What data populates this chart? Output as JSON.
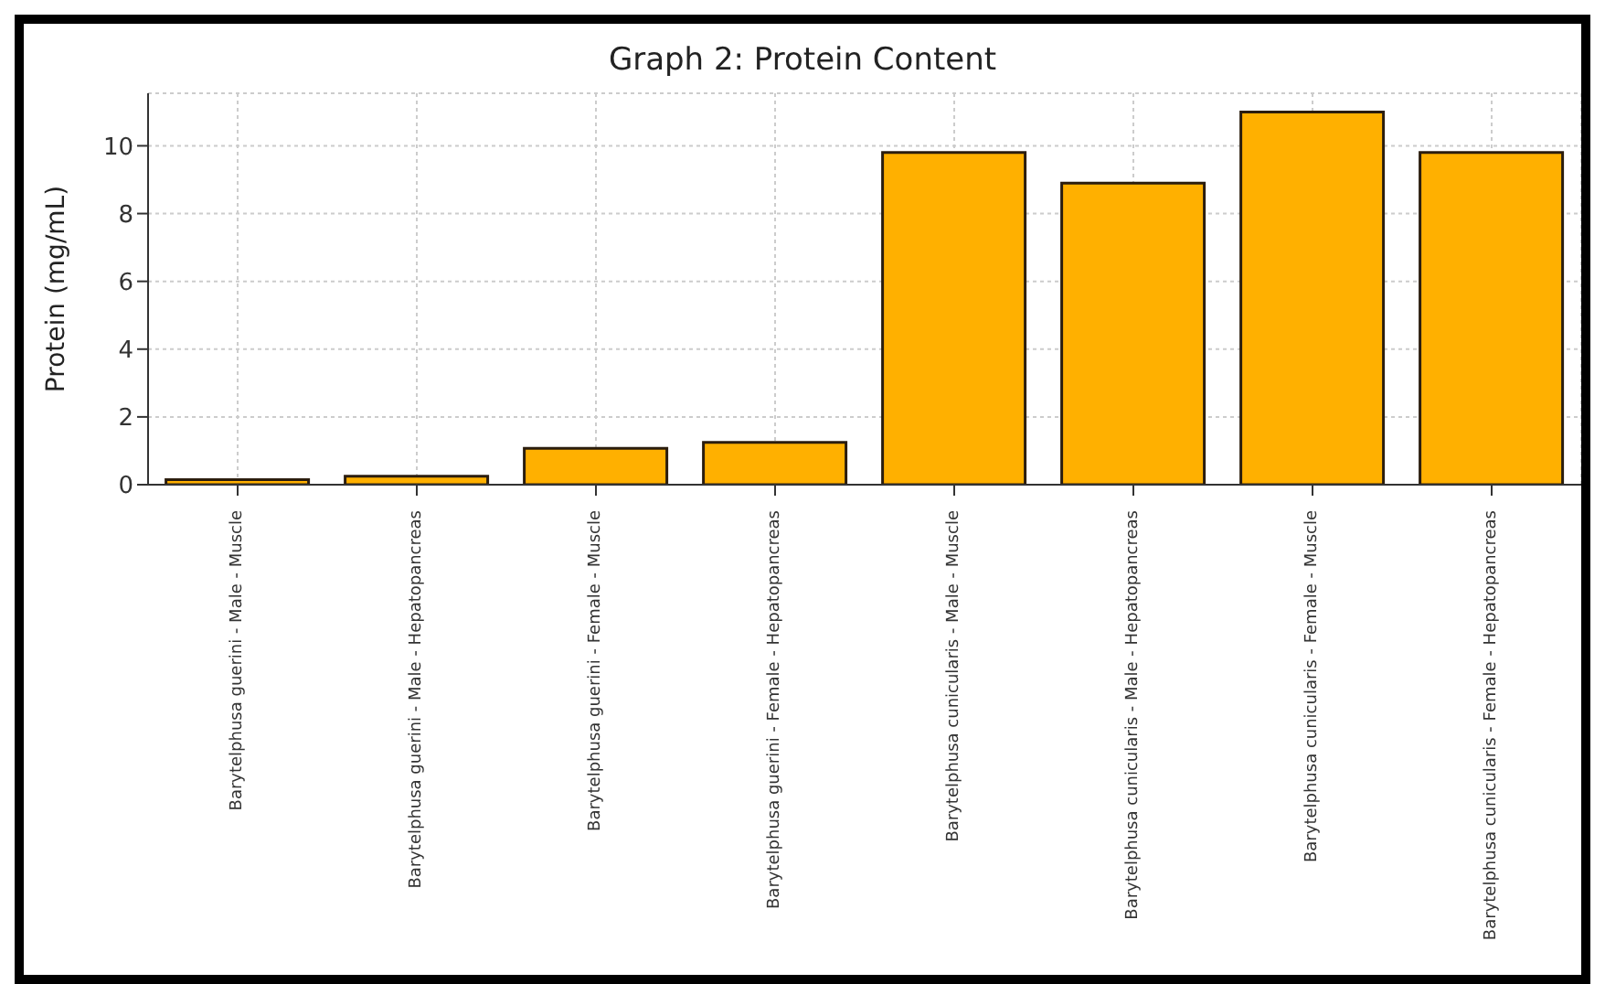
{
  "chart_data": {
    "type": "bar",
    "title": "Graph 2: Protein Content",
    "ylabel": "Protein (mg/mL)",
    "categories": [
      "Barytelphusa guerini - Male - Muscle",
      "Barytelphusa guerini - Male - Hepatopancreas",
      "Barytelphusa guerini - Female - Muscle",
      "Barytelphusa guerini - Female - Hepatopancreas",
      "Barytelphusa cunicularis - Male - Muscle",
      "Barytelphusa cunicularis - Male - Hepatopancreas",
      "Barytelphusa cunicularis - Female - Muscle",
      "Barytelphusa cunicularis - Female - Hepatopancreas"
    ],
    "values": [
      0.15,
      0.25,
      1.07,
      1.25,
      9.8,
      8.9,
      11,
      9.8
    ],
    "color": "#ffb000",
    "ylim": [
      0,
      11.55
    ],
    "yticks": [
      0,
      2,
      4,
      6,
      8,
      10
    ],
    "grid": true
  }
}
